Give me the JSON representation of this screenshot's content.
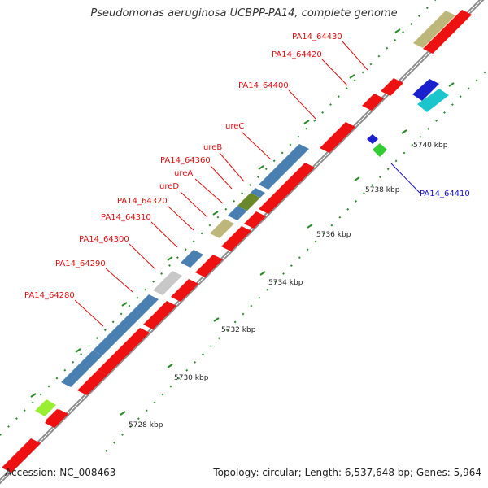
{
  "title": "Pseudomonas aeruginosa UCBPP-PA14, complete genome",
  "footer": {
    "accession": "Accession: NC_008463",
    "summary": "Topology: circular; Length: 6,537,648 bp; Genes: 5,964"
  },
  "colors": {
    "backbone": "#8c8c8c",
    "dots": "#2a8a2a",
    "red_gene": "#ee1111",
    "blue_gene": "#4a7fb2",
    "grey_gene": "#c8c8c8",
    "tan_gene": "#bdb87a",
    "olive_gene": "#6a8a2a",
    "cyan_gene": "#1ac6cc",
    "dark_blue_gene": "#1a20cc",
    "green_gene": "#33cc33",
    "lime_gene": "#99ee33",
    "label_red": "#dd1111",
    "label_blue": "#1111cc"
  },
  "axis": {
    "unit": "kbp",
    "ticks": [
      {
        "kbp": 5728,
        "label": "5728 kbp"
      },
      {
        "kbp": 5730,
        "label": "5730 kbp"
      },
      {
        "kbp": 5732,
        "label": "5732 kbp"
      },
      {
        "kbp": 5734,
        "label": "5734 kbp"
      },
      {
        "kbp": 5736,
        "label": "5736 kbp"
      },
      {
        "kbp": 5738,
        "label": "5738 kbp"
      },
      {
        "kbp": 5740,
        "label": "5740 kbp"
      }
    ]
  },
  "gene_labels": [
    {
      "text": "PA14_64280",
      "color": "red"
    },
    {
      "text": "PA14_64290",
      "color": "red"
    },
    {
      "text": "PA14_64300",
      "color": "red"
    },
    {
      "text": "PA14_64310",
      "color": "red"
    },
    {
      "text": "PA14_64320",
      "color": "red"
    },
    {
      "text": "ureD",
      "color": "red"
    },
    {
      "text": "ureA",
      "color": "red"
    },
    {
      "text": "PA14_64360",
      "color": "red"
    },
    {
      "text": "ureB",
      "color": "red"
    },
    {
      "text": "ureC",
      "color": "red"
    },
    {
      "text": "PA14_64400",
      "color": "red"
    },
    {
      "text": "PA14_64420",
      "color": "red"
    },
    {
      "text": "PA14_64430",
      "color": "red"
    },
    {
      "text": "PA14_64410",
      "color": "blue"
    }
  ]
}
